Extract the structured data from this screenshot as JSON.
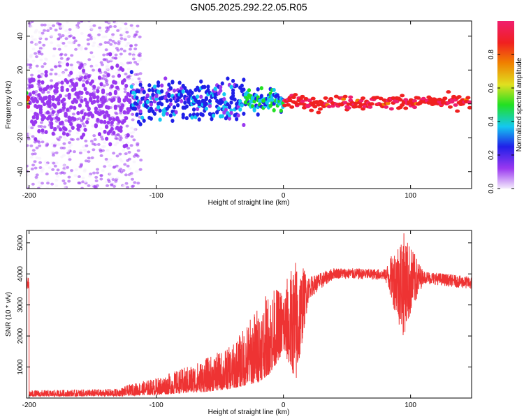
{
  "title": "GN05.2025.292.22.05.R05",
  "chart_data": [
    {
      "type": "heatmap",
      "title": "GN05.2025.292.22.05.R05",
      "xlabel": "Height of straight line (km)",
      "ylabel": "Frequency (Hz)",
      "xlim": [
        -202,
        148
      ],
      "ylim": [
        -50,
        49
      ],
      "xticks": [
        -200,
        -100,
        0,
        100
      ],
      "yticks": [
        -40,
        -20,
        0,
        20,
        40
      ],
      "colorbar": {
        "label": "Normalized spectral amplitude",
        "range": [
          0,
          1
        ],
        "ticks": [
          0.0,
          0.2,
          0.4,
          0.6,
          0.8
        ],
        "colors": [
          "#f4ecfc",
          "#9a38f0",
          "#2020e8",
          "#14c8f0",
          "#22e022",
          "#e0e020",
          "#f08000",
          "#f02020",
          "#f01e6e"
        ]
      },
      "description_of_signal": [
        {
          "x_range": [
            -200,
            -120
          ],
          "freq_center": 0,
          "freq_spread": 10,
          "amplitude": 0.15
        },
        {
          "x_range": [
            -120,
            -30
          ],
          "freq_center": 2,
          "freq_spread": 6,
          "amplitude": 0.3
        },
        {
          "x_range": [
            -30,
            0
          ],
          "freq_center": 2,
          "freq_spread": 3,
          "amplitude": 0.45
        },
        {
          "x_range": [
            0,
            148
          ],
          "freq_center": 1,
          "freq_spread": 2,
          "amplitude": 0.95
        }
      ]
    },
    {
      "type": "line",
      "xlabel": "Height of straight line (km)",
      "ylabel": "SNR (10 * v/v)",
      "xlim": [
        -202,
        148
      ],
      "ylim": [
        0,
        5400
      ],
      "xticks": [
        -200,
        -100,
        0,
        100
      ],
      "yticks": [
        1000,
        2000,
        3000,
        4000,
        5000
      ],
      "color": "#ee3333",
      "series_envelope": [
        {
          "x": -200,
          "low": 50,
          "high": 250
        },
        {
          "x": -130,
          "low": 60,
          "high": 300
        },
        {
          "x": -120,
          "low": 80,
          "high": 450
        },
        {
          "x": -100,
          "low": 100,
          "high": 650
        },
        {
          "x": -80,
          "low": 150,
          "high": 950
        },
        {
          "x": -60,
          "low": 200,
          "high": 1300
        },
        {
          "x": -40,
          "low": 300,
          "high": 1700
        },
        {
          "x": -20,
          "low": 500,
          "high": 3000
        },
        {
          "x": -10,
          "low": 800,
          "high": 3500
        },
        {
          "x": 0,
          "low": 1500,
          "high": 3600
        },
        {
          "x": 10,
          "low": 550,
          "high": 4600
        },
        {
          "x": 20,
          "low": 3200,
          "high": 3900
        },
        {
          "x": 40,
          "low": 3850,
          "high": 4200
        },
        {
          "x": 80,
          "low": 3800,
          "high": 4150
        },
        {
          "x": 94,
          "low": 1950,
          "high": 5400
        },
        {
          "x": 110,
          "low": 3700,
          "high": 4100
        },
        {
          "x": 148,
          "low": 3500,
          "high": 3900
        }
      ]
    }
  ]
}
